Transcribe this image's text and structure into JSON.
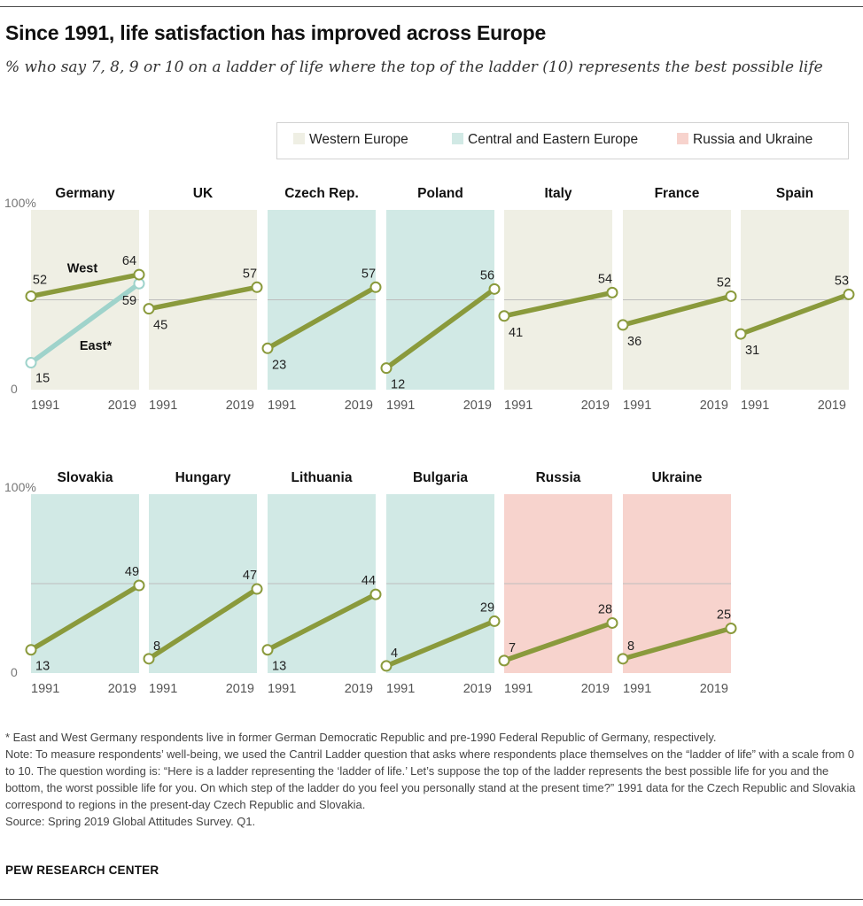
{
  "title": "Since 1991, life satisfaction has improved across Europe",
  "subtitle": "% who say 7, 8, 9 or 10 on a ladder of life where the top of the ladder (10) represents the best possible life",
  "legend": [
    {
      "label": "Western Europe",
      "color": "#efefe4"
    },
    {
      "label": "Central and Eastern Europe",
      "color": "#d1e9e5"
    },
    {
      "label": "Russia and Ukraine",
      "color": "#f7d3cd"
    }
  ],
  "chart_data": {
    "type": "line",
    "subtype": "small-multiples slope chart",
    "title": "Since 1991, life satisfaction has improved across Europe",
    "x": [
      "1991",
      "2019"
    ],
    "ylim": [
      0,
      100
    ],
    "y_axis_labels": {
      "top": "100%",
      "bottom": "0"
    },
    "gridline": 50,
    "panels": [
      {
        "country": "Germany",
        "region": "west",
        "series": [
          {
            "name": "West",
            "values": [
              52,
              64
            ],
            "color": "#8a9a3c"
          },
          {
            "name": "East*",
            "values": [
              15,
              59
            ],
            "color": "#9fd3cb"
          }
        ]
      },
      {
        "country": "UK",
        "region": "west",
        "series": [
          {
            "name": "UK",
            "values": [
              45,
              57
            ]
          }
        ]
      },
      {
        "country": "Czech Rep.",
        "region": "cee",
        "series": [
          {
            "name": "Czech Rep.",
            "values": [
              23,
              57
            ]
          }
        ]
      },
      {
        "country": "Poland",
        "region": "cee",
        "series": [
          {
            "name": "Poland",
            "values": [
              12,
              56
            ]
          }
        ]
      },
      {
        "country": "Italy",
        "region": "west",
        "series": [
          {
            "name": "Italy",
            "values": [
              41,
              54
            ]
          }
        ]
      },
      {
        "country": "France",
        "region": "west",
        "series": [
          {
            "name": "France",
            "values": [
              36,
              52
            ]
          }
        ]
      },
      {
        "country": "Spain",
        "region": "west",
        "series": [
          {
            "name": "Spain",
            "values": [
              31,
              53
            ]
          }
        ]
      },
      {
        "country": "Slovakia",
        "region": "cee",
        "series": [
          {
            "name": "Slovakia",
            "values": [
              13,
              49
            ]
          }
        ]
      },
      {
        "country": "Hungary",
        "region": "cee",
        "series": [
          {
            "name": "Hungary",
            "values": [
              8,
              47
            ]
          }
        ]
      },
      {
        "country": "Lithuania",
        "region": "cee",
        "series": [
          {
            "name": "Lithuania",
            "values": [
              13,
              44
            ]
          }
        ]
      },
      {
        "country": "Bulgaria",
        "region": "cee",
        "series": [
          {
            "name": "Bulgaria",
            "values": [
              4,
              29
            ]
          }
        ]
      },
      {
        "country": "Russia",
        "region": "ru",
        "series": [
          {
            "name": "Russia",
            "values": [
              7,
              28
            ]
          }
        ]
      },
      {
        "country": "Ukraine",
        "region": "ru",
        "series": [
          {
            "name": "Ukraine",
            "values": [
              8,
              25
            ]
          }
        ]
      }
    ]
  },
  "colors": {
    "west_bg": "#efefe4",
    "cee_bg": "#d1e9e5",
    "ru_bg": "#f7d3cd",
    "line": "#8a9a3c",
    "east_line": "#9fd3cb",
    "gridline": "#bdbdbd"
  },
  "notes": [
    "* East and West Germany respondents live in former German Democratic Republic and pre-1990 Federal Republic of Germany, respectively.",
    "Note: To measure respondents’ well-being, we used the Cantril Ladder question that asks where respondents place themselves on the “ladder of life” with a scale from 0 to 10. The question wording is: “Here is a ladder representing the ‘ladder of life.’ Let’s suppose the top of the ladder represents the best possible life for you and the bottom, the worst possible life for you. On which step of the ladder do you feel you personally stand at the present time?” 1991 data for the Czech Republic and Slovakia correspond to regions in the present-day Czech Republic and Slovakia.",
    "Source: Spring 2019 Global Attitudes Survey. Q1."
  ],
  "credit": "PEW RESEARCH CENTER"
}
